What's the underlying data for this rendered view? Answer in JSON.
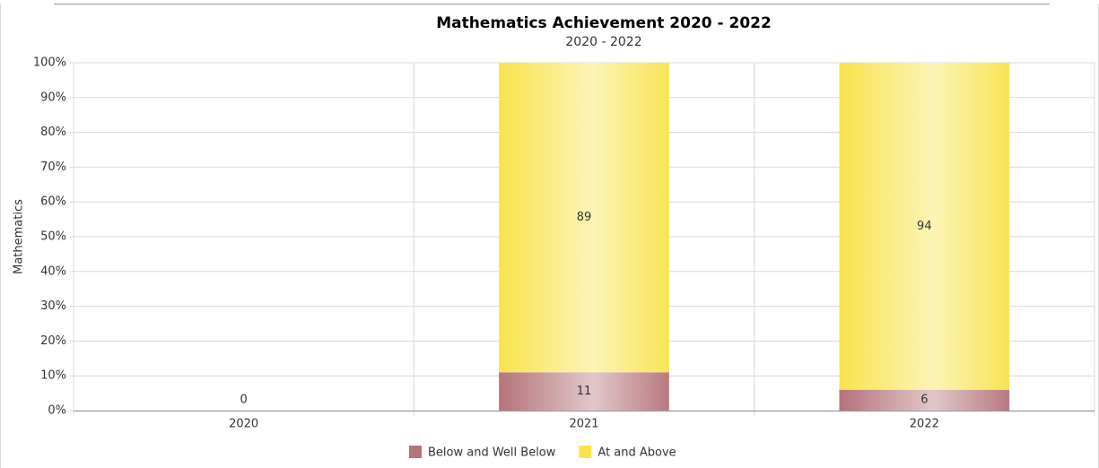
{
  "chart_data": {
    "type": "stacked_bar",
    "title": "Mathematics Achievement 2020 - 2022",
    "subtitle": "2020 - 2022",
    "y_label": "Mathematics",
    "categories": [
      "2020",
      "2021",
      "2022"
    ],
    "series": [
      {
        "name": "Below and Well Below",
        "color": "#b5737b",
        "values": [
          0,
          11,
          6
        ]
      },
      {
        "name": "At and Above",
        "color": "#f8e34c",
        "values": [
          null,
          89,
          94
        ]
      }
    ],
    "ylim": [
      0,
      100
    ],
    "yticks": [
      {
        "value": 0,
        "label": "0%"
      },
      {
        "value": 10,
        "label": "10%"
      },
      {
        "value": 20,
        "label": "20%"
      },
      {
        "value": 30,
        "label": "30%"
      },
      {
        "value": 40,
        "label": "40%"
      },
      {
        "value": 50,
        "label": "50%"
      },
      {
        "value": 60,
        "label": "60%"
      },
      {
        "value": 70,
        "label": "70%"
      },
      {
        "value": 80,
        "label": "80%"
      },
      {
        "value": 90,
        "label": "90%"
      },
      {
        "value": 100,
        "label": "100%"
      }
    ],
    "grid": true,
    "legend": "bottom"
  }
}
